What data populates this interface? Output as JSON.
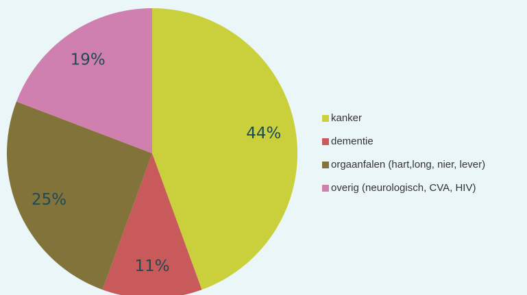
{
  "chart_data": {
    "type": "pie",
    "categories": [
      "kanker",
      "dementie",
      "orgaanfalen (hart,long, nier, lever)",
      "overig (neurologisch, CVA, HIV)"
    ],
    "values": [
      44,
      11,
      25,
      19
    ],
    "value_labels": [
      "44%",
      "11%",
      "25%",
      "19%"
    ],
    "colors": [
      "#c9d03c",
      "#c95a5c",
      "#82733a",
      "#d080ae"
    ],
    "legend": "right"
  }
}
